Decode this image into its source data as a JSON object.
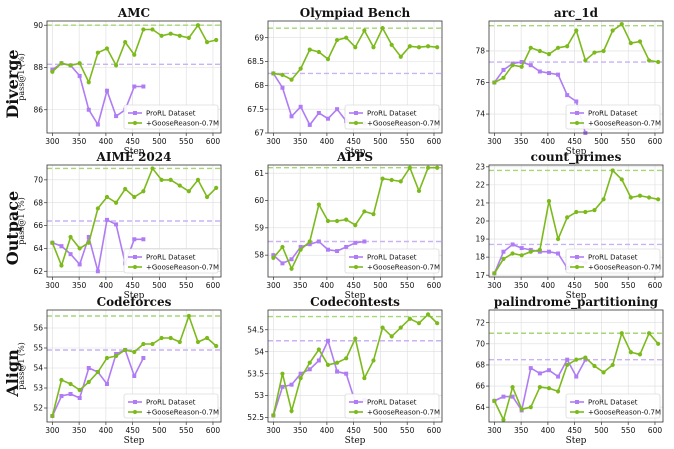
{
  "figure": {
    "rows": [
      "Diverge",
      "Outpace",
      "Align"
    ],
    "xlabel": "Step",
    "ylabel": "pass@1 (%)",
    "colors": {
      "prorl": "#b07cf5",
      "goose": "#7cba1c",
      "prorl_ref": "#c9b2f5",
      "goose_ref": "#a6d676",
      "axis": "#333333",
      "grid": "#dddddd"
    }
  },
  "chart_data": [
    {
      "type": "line",
      "title": "AMC",
      "row": "Diverge",
      "xlim": [
        290,
        615
      ],
      "ylim": [
        84.9,
        90.2
      ],
      "xticks": [
        300,
        350,
        400,
        450,
        500,
        550,
        600
      ],
      "yticks": [
        86,
        88,
        90
      ],
      "series": [
        {
          "name": "ProRL Dataset",
          "x": [
            300,
            317,
            334,
            351,
            368,
            385,
            402,
            419,
            436,
            453,
            470
          ],
          "y": [
            87.9,
            88.2,
            88.1,
            87.6,
            86.0,
            85.3,
            86.9,
            85.7,
            86.0,
            87.1,
            87.1
          ]
        },
        {
          "name": "+GooseReason-0.7M",
          "x": [
            300,
            317,
            334,
            351,
            368,
            385,
            402,
            419,
            436,
            453,
            470,
            487,
            504,
            521,
            538,
            555,
            572,
            589,
            606
          ],
          "y": [
            87.8,
            88.2,
            88.1,
            88.2,
            87.3,
            88.7,
            88.9,
            88.1,
            89.2,
            88.6,
            89.8,
            89.8,
            89.5,
            89.6,
            89.5,
            89.4,
            90.0,
            89.2,
            89.3
          ]
        }
      ],
      "ref_lines": [
        {
          "series": "ProRL Dataset",
          "value": 88.15
        },
        {
          "series": "+GooseReason-0.7M",
          "value": 90.0
        }
      ],
      "legend": {
        "position": "lower-right",
        "entries": [
          "ProRL Dataset",
          "+GooseReason-0.7M"
        ]
      }
    },
    {
      "type": "line",
      "title": "Olympiad Bench",
      "row": "Diverge",
      "xlim": [
        290,
        615
      ],
      "ylim": [
        67.0,
        69.35
      ],
      "xticks": [
        300,
        350,
        400,
        450,
        500,
        550,
        600
      ],
      "yticks": [
        67.0,
        67.5,
        68.0,
        68.5,
        69.0
      ],
      "series": [
        {
          "name": "ProRL Dataset",
          "x": [
            300,
            317,
            334,
            351,
            368,
            385,
            402,
            419,
            436,
            453,
            470
          ],
          "y": [
            68.25,
            67.95,
            67.35,
            67.55,
            67.17,
            67.42,
            67.3,
            67.5,
            67.25,
            67.22,
            67.2
          ]
        },
        {
          "name": "+GooseReason-0.7M",
          "x": [
            300,
            317,
            334,
            351,
            368,
            385,
            402,
            419,
            436,
            453,
            470,
            487,
            504,
            521,
            538,
            555,
            572,
            589,
            606
          ],
          "y": [
            68.25,
            68.22,
            68.12,
            68.35,
            68.75,
            68.7,
            68.55,
            68.95,
            69.0,
            68.8,
            69.15,
            68.8,
            69.2,
            68.85,
            68.6,
            68.82,
            68.8,
            68.82,
            68.8
          ]
        }
      ],
      "ref_lines": [
        {
          "series": "ProRL Dataset",
          "value": 68.25
        },
        {
          "series": "+GooseReason-0.7M",
          "value": 69.2
        }
      ],
      "legend": {
        "position": "lower-right",
        "entries": [
          "ProRL Dataset",
          "+GooseReason-0.7M"
        ]
      }
    },
    {
      "type": "line",
      "title": "arc_1d",
      "row": "Diverge",
      "xlim": [
        290,
        615
      ],
      "ylim": [
        72.8,
        79.9
      ],
      "xticks": [
        300,
        350,
        400,
        450,
        500,
        550,
        600
      ],
      "yticks": [
        74,
        76,
        78
      ],
      "series": [
        {
          "name": "ProRL Dataset",
          "x": [
            300,
            317,
            334,
            351,
            368,
            385,
            402,
            419,
            436,
            453,
            470
          ],
          "y": [
            76.0,
            76.8,
            77.2,
            77.3,
            77.1,
            76.7,
            76.6,
            76.5,
            75.2,
            74.8,
            72.8
          ]
        },
        {
          "name": "+GooseReason-0.7M",
          "x": [
            300,
            317,
            334,
            351,
            368,
            385,
            402,
            419,
            436,
            453,
            470,
            487,
            504,
            521,
            538,
            555,
            572,
            589,
            606
          ],
          "y": [
            76.0,
            76.3,
            77.1,
            77.0,
            78.2,
            78.0,
            77.8,
            78.2,
            78.3,
            79.3,
            77.4,
            77.9,
            78.0,
            79.3,
            79.7,
            78.5,
            78.6,
            77.4,
            77.3
          ]
        }
      ],
      "ref_lines": [
        {
          "series": "ProRL Dataset",
          "value": 77.3
        },
        {
          "series": "+GooseReason-0.7M",
          "value": 79.6
        }
      ],
      "legend": {
        "position": "lower-right",
        "entries": [
          "ProRL Dataset",
          "+GooseReason-0.7M"
        ]
      }
    },
    {
      "type": "line",
      "title": "AIME 2024",
      "row": "Outpace",
      "xlim": [
        290,
        615
      ],
      "ylim": [
        61.5,
        71.3
      ],
      "xticks": [
        300,
        350,
        400,
        450,
        500,
        550,
        600
      ],
      "yticks": [
        62,
        64,
        66,
        68,
        70
      ],
      "series": [
        {
          "name": "ProRL Dataset",
          "x": [
            300,
            317,
            334,
            351,
            368,
            385,
            402,
            419,
            436,
            453,
            470
          ],
          "y": [
            64.5,
            64.2,
            63.5,
            62.6,
            65.0,
            62.0,
            66.5,
            66.1,
            62.7,
            64.8,
            64.8
          ]
        },
        {
          "name": "+GooseReason-0.7M",
          "x": [
            300,
            317,
            334,
            351,
            368,
            385,
            402,
            419,
            436,
            453,
            470,
            487,
            504,
            521,
            538,
            555,
            572,
            589,
            606
          ],
          "y": [
            64.5,
            62.5,
            65.0,
            64.0,
            64.5,
            67.5,
            68.5,
            68.0,
            69.2,
            68.5,
            69.0,
            71.0,
            70.0,
            70.0,
            69.5,
            69.0,
            70.0,
            68.5,
            69.3
          ]
        }
      ],
      "ref_lines": [
        {
          "series": "ProRL Dataset",
          "value": 66.4
        },
        {
          "series": "+GooseReason-0.7M",
          "value": 71.0
        }
      ],
      "legend": {
        "position": "lower-right",
        "entries": [
          "ProRL Dataset",
          "+GooseReason-0.7M"
        ]
      }
    },
    {
      "type": "line",
      "title": "APPS",
      "row": "Outpace",
      "xlim": [
        290,
        615
      ],
      "ylim": [
        57.2,
        61.3
      ],
      "xticks": [
        300,
        350,
        400,
        450,
        500,
        550,
        600
      ],
      "yticks": [
        58,
        59,
        60,
        61
      ],
      "series": [
        {
          "name": "ProRL Dataset",
          "x": [
            300,
            317,
            334,
            351,
            368,
            385,
            402,
            419,
            436,
            453,
            470
          ],
          "y": [
            58.0,
            57.7,
            57.85,
            58.3,
            58.4,
            58.5,
            58.2,
            58.15,
            58.3,
            58.45,
            58.5
          ]
        },
        {
          "name": "+GooseReason-0.7M",
          "x": [
            300,
            317,
            334,
            351,
            368,
            385,
            402,
            419,
            436,
            453,
            470,
            487,
            504,
            521,
            538,
            555,
            572,
            589,
            606
          ],
          "y": [
            57.9,
            58.3,
            57.5,
            58.2,
            58.5,
            59.85,
            59.25,
            59.25,
            59.3,
            59.1,
            59.6,
            59.5,
            60.8,
            60.75,
            60.7,
            61.2,
            60.35,
            61.2,
            61.2
          ]
        }
      ],
      "ref_lines": [
        {
          "series": "ProRL Dataset",
          "value": 58.5
        },
        {
          "series": "+GooseReason-0.7M",
          "value": 61.2
        }
      ],
      "legend": {
        "position": "lower-right",
        "entries": [
          "ProRL Dataset",
          "+GooseReason-0.7M"
        ]
      }
    },
    {
      "type": "line",
      "title": "count_primes",
      "row": "Outpace",
      "xlim": [
        290,
        615
      ],
      "ylim": [
        16.9,
        23.1
      ],
      "xticks": [
        300,
        350,
        400,
        450,
        500,
        550,
        600
      ],
      "yticks": [
        17,
        18,
        19,
        20,
        21,
        22,
        23
      ],
      "series": [
        {
          "name": "ProRL Dataset",
          "x": [
            300,
            317,
            334,
            351,
            368,
            385,
            402,
            419,
            436,
            453,
            470
          ],
          "y": [
            17.1,
            18.3,
            18.7,
            18.5,
            18.4,
            18.3,
            18.3,
            18.2,
            17.4,
            17.8,
            17.7
          ]
        },
        {
          "name": "+GooseReason-0.7M",
          "x": [
            300,
            317,
            334,
            351,
            368,
            385,
            402,
            419,
            436,
            453,
            470,
            487,
            504,
            521,
            538,
            555,
            572,
            589,
            606
          ],
          "y": [
            17.1,
            17.9,
            18.2,
            18.1,
            18.3,
            18.4,
            21.1,
            19.0,
            20.2,
            20.5,
            20.5,
            20.6,
            21.2,
            22.8,
            22.3,
            21.3,
            21.4,
            21.3,
            21.2
          ]
        }
      ],
      "ref_lines": [
        {
          "series": "ProRL Dataset",
          "value": 18.7
        },
        {
          "series": "+GooseReason-0.7M",
          "value": 22.8
        }
      ],
      "legend": {
        "position": "lower-right",
        "entries": [
          "ProRL Dataset",
          "+GooseReason-0.7M"
        ]
      }
    },
    {
      "type": "line",
      "title": "Codeforces",
      "row": "Align",
      "xlim": [
        290,
        615
      ],
      "ylim": [
        51.3,
        56.9
      ],
      "xticks": [
        300,
        350,
        400,
        450,
        500,
        550,
        600
      ],
      "yticks": [
        52,
        53,
        54,
        55,
        56
      ],
      "series": [
        {
          "name": "ProRL Dataset",
          "x": [
            300,
            317,
            334,
            351,
            368,
            385,
            402,
            419,
            436,
            453,
            470
          ],
          "y": [
            51.6,
            52.6,
            52.7,
            52.5,
            54.0,
            53.8,
            53.2,
            54.7,
            54.9,
            53.6,
            54.5
          ]
        },
        {
          "name": "+GooseReason-0.7M",
          "x": [
            300,
            317,
            334,
            351,
            368,
            385,
            402,
            419,
            436,
            453,
            470,
            487,
            504,
            521,
            538,
            555,
            572,
            589,
            606
          ],
          "y": [
            51.6,
            53.4,
            53.2,
            52.9,
            53.3,
            53.8,
            54.5,
            54.6,
            54.9,
            54.8,
            55.2,
            55.2,
            55.5,
            55.5,
            55.3,
            56.6,
            55.3,
            55.5,
            55.1
          ]
        }
      ],
      "ref_lines": [
        {
          "series": "ProRL Dataset",
          "value": 54.9
        },
        {
          "series": "+GooseReason-0.7M",
          "value": 56.6
        }
      ],
      "legend": {
        "position": "lower-right",
        "entries": [
          "ProRL Dataset",
          "+GooseReason-0.7M"
        ]
      }
    },
    {
      "type": "line",
      "title": "Codecontests",
      "row": "Align",
      "xlim": [
        290,
        615
      ],
      "ylim": [
        52.4,
        54.95
      ],
      "xticks": [
        300,
        350,
        400,
        450,
        500,
        550,
        600
      ],
      "yticks": [
        52.5,
        53.0,
        53.5,
        54.0,
        54.5
      ],
      "series": [
        {
          "name": "ProRL Dataset",
          "x": [
            300,
            317,
            334,
            351,
            368,
            385,
            402,
            419,
            436,
            453,
            470
          ],
          "y": [
            52.55,
            53.2,
            53.25,
            53.5,
            53.6,
            53.8,
            54.25,
            53.55,
            53.5,
            52.85,
            52.9
          ]
        },
        {
          "name": "+GooseReason-0.7M",
          "x": [
            300,
            317,
            334,
            351,
            368,
            385,
            402,
            419,
            436,
            453,
            470,
            487,
            504,
            521,
            538,
            555,
            572,
            589,
            606
          ],
          "y": [
            52.55,
            53.5,
            52.65,
            53.4,
            53.75,
            54.05,
            53.7,
            53.75,
            53.85,
            54.3,
            53.4,
            53.8,
            54.55,
            54.35,
            54.55,
            54.75,
            54.65,
            54.85,
            54.65
          ]
        }
      ],
      "ref_lines": [
        {
          "series": "ProRL Dataset",
          "value": 54.25
        },
        {
          "series": "+GooseReason-0.7M",
          "value": 54.8
        }
      ],
      "legend": {
        "position": "lower-right",
        "entries": [
          "ProRL Dataset",
          "+GooseReason-0.7M"
        ]
      }
    },
    {
      "type": "line",
      "title": "palindrome_partitioning",
      "row": "Align",
      "xlim": [
        290,
        615
      ],
      "ylim": [
        62.6,
        73.2
      ],
      "xticks": [
        300,
        350,
        400,
        450,
        500,
        550,
        600
      ],
      "yticks": [
        64,
        66,
        68,
        70,
        72
      ],
      "series": [
        {
          "name": "ProRL Dataset",
          "x": [
            300,
            317,
            334,
            351,
            368,
            385,
            402,
            419,
            436,
            453,
            470
          ],
          "y": [
            64.6,
            65.0,
            65.0,
            63.7,
            67.7,
            67.2,
            67.5,
            66.9,
            68.5,
            66.9,
            68.5
          ]
        },
        {
          "name": "+GooseReason-0.7M",
          "x": [
            300,
            317,
            334,
            351,
            368,
            385,
            402,
            419,
            436,
            453,
            470,
            487,
            504,
            521,
            538,
            555,
            572,
            589,
            606
          ],
          "y": [
            64.6,
            62.8,
            65.9,
            63.8,
            64.0,
            65.9,
            65.8,
            65.5,
            68.0,
            68.5,
            68.7,
            67.9,
            67.3,
            68.0,
            71.0,
            69.2,
            69.0,
            71.0,
            70.0
          ]
        }
      ],
      "ref_lines": [
        {
          "series": "ProRL Dataset",
          "value": 68.5
        },
        {
          "series": "+GooseReason-0.7M",
          "value": 71.0
        }
      ],
      "legend": {
        "position": "lower-right",
        "entries": [
          "ProRL Dataset",
          "+GooseReason-0.7M"
        ]
      }
    }
  ]
}
